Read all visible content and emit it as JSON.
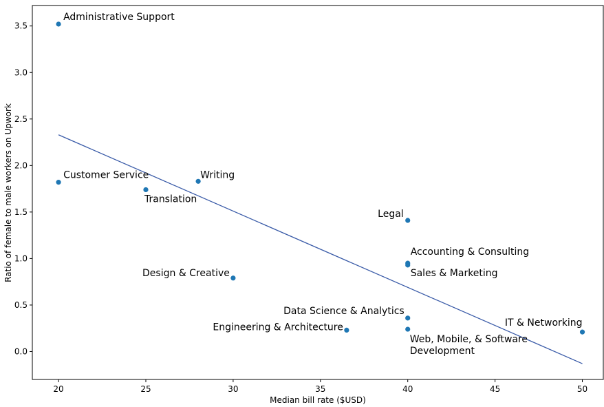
{
  "chart_data": {
    "type": "scatter",
    "xlabel": "Median bill rate ($USD)",
    "ylabel": "Ratio of female to male workers on Upwork",
    "xlim": [
      18.5,
      51.2
    ],
    "ylim": [
      -0.3,
      3.72
    ],
    "xticks": [
      20,
      25,
      30,
      35,
      40,
      45,
      50
    ],
    "xtick_labels": [
      "20",
      "25",
      "30",
      "35",
      "40",
      "45",
      "50"
    ],
    "yticks": [
      0.0,
      0.5,
      1.0,
      1.5,
      2.0,
      2.5,
      3.0,
      3.5
    ],
    "ytick_labels": [
      "0.0",
      "0.5",
      "1.0",
      "1.5",
      "2.0",
      "2.5",
      "3.0",
      "3.5"
    ],
    "grid": false,
    "point_color": "#1f77b4",
    "line_color": "#3a5ba8",
    "points": [
      {
        "label": "Administrative Support",
        "x": 20,
        "y": 3.52
      },
      {
        "label": "Customer Service",
        "x": 20,
        "y": 1.82
      },
      {
        "label": "Translation",
        "x": 25,
        "y": 1.74
      },
      {
        "label": "Writing",
        "x": 28,
        "y": 1.83
      },
      {
        "label": "Design & Creative",
        "x": 30,
        "y": 0.79
      },
      {
        "label": "Legal",
        "x": 40,
        "y": 1.41
      },
      {
        "label": "Accounting & Consulting",
        "x": 40,
        "y": 0.95
      },
      {
        "label": "Sales & Marketing",
        "x": 40,
        "y": 0.93
      },
      {
        "label": "Data Science & Analytics",
        "x": 40,
        "y": 0.36
      },
      {
        "label": "Web, Mobile, & Software Development",
        "x": 40,
        "y": 0.24
      },
      {
        "label": "Engineering & Architecture",
        "x": 36.5,
        "y": 0.23
      },
      {
        "label": "IT & Networking",
        "x": 50,
        "y": 0.21
      }
    ],
    "trendline": {
      "x": [
        20,
        50
      ],
      "y": [
        2.33,
        -0.13
      ]
    }
  }
}
